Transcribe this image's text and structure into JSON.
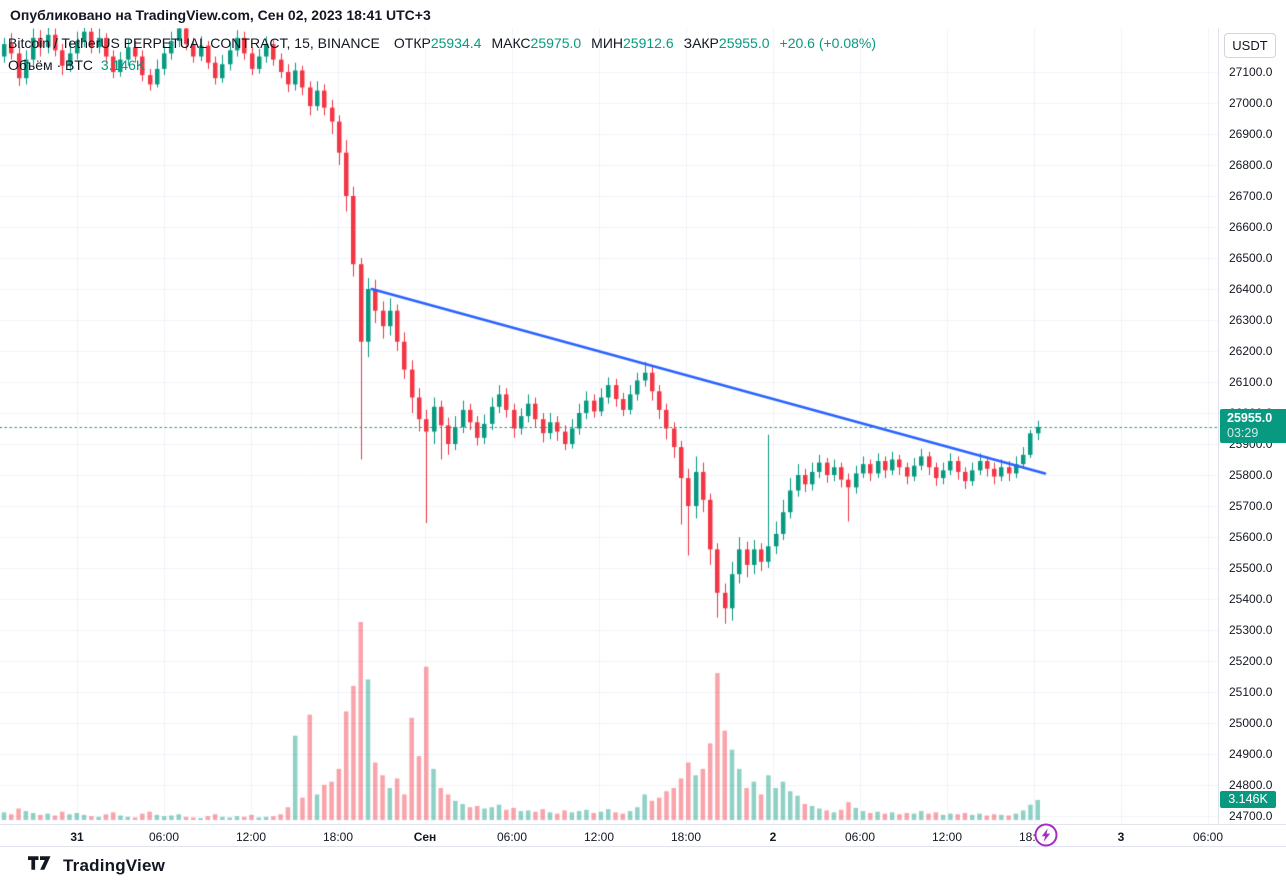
{
  "publish_bar": {
    "text": "Опубликовано на TradingView.com, Сен 02, 2023 18:41 UTC+3"
  },
  "legend": {
    "title": "Bitcoin / TetherUS PERPETUAL CONTRACT, 15, BINANCE",
    "fields": [
      {
        "label": "ОТКР",
        "value": "25934.4"
      },
      {
        "label": "МАКС",
        "value": "25975.0"
      },
      {
        "label": "МИН",
        "value": "25912.6"
      },
      {
        "label": "ЗАКР",
        "value": "25955.0"
      }
    ],
    "change": "+20.6 (+0.08%)",
    "volume_label": "Объём · BTC",
    "volume_value": "3.146K"
  },
  "price_axis": {
    "currency_button": "USDT",
    "ticks": [
      "27100.0",
      "27000.0",
      "26900.0",
      "26800.0",
      "26700.0",
      "26600.0",
      "26500.0",
      "26400.0",
      "26300.0",
      "26200.0",
      "26100.0",
      "26000.0",
      "25900.0",
      "25800.0",
      "25700.0",
      "25600.0",
      "25500.0",
      "25400.0",
      "25300.0",
      "25200.0",
      "25100.0",
      "25000.0",
      "24900.0",
      "24800.0",
      "24700.0"
    ],
    "last_price_badge": {
      "price": "25955.0",
      "countdown": "03:29"
    },
    "volume_badge": "3.146K"
  },
  "time_axis": {
    "labels": [
      {
        "text": "31",
        "major": true
      },
      {
        "text": "06:00",
        "major": false
      },
      {
        "text": "12:00",
        "major": false
      },
      {
        "text": "18:00",
        "major": false
      },
      {
        "text": "Сен",
        "major": true
      },
      {
        "text": "06:00",
        "major": false
      },
      {
        "text": "12:00",
        "major": false
      },
      {
        "text": "18:00",
        "major": false
      },
      {
        "text": "2",
        "major": true
      },
      {
        "text": "06:00",
        "major": false
      },
      {
        "text": "12:00",
        "major": false
      },
      {
        "text": "18:00",
        "major": false
      },
      {
        "text": "3",
        "major": true
      },
      {
        "text": "06:00",
        "major": false
      }
    ]
  },
  "footer": {
    "brand": "TradingView"
  },
  "icons": {
    "marker": "lightning-icon",
    "brand": "tradingview-logo-icon"
  },
  "colors": {
    "up": "#089981",
    "down": "#F23645",
    "volume_up": "rgba(8,153,129,0.45)",
    "volume_down": "rgba(242,54,69,0.45)",
    "trendline": "#2962FF",
    "grid": "#F0F3FA",
    "axis_text": "#131722",
    "badge_bg": "#089981",
    "marker_purple": "#A62BC3",
    "brand_dark": "#131722"
  },
  "chart_data": {
    "type": "candlestick",
    "pair": "Bitcoin / TetherUS PERPETUAL CONTRACT",
    "interval": "15",
    "exchange": "BINANCE",
    "open": 25934.4,
    "high": 25975.0,
    "low": 25912.6,
    "close": 25955.0,
    "change_abs": 20.6,
    "change_pct": 0.08,
    "last_price": 25955.0,
    "countdown": "03:29",
    "last_volume": 3.146,
    "volume_currency": "BTC",
    "price_axis_range": [
      24700,
      27240
    ],
    "price_grid_step": 100,
    "volume_scale_max": 31,
    "trendline": {
      "from": {
        "index": 50.5,
        "price": 26400
      },
      "to": {
        "index": 143,
        "price": 25805
      }
    },
    "candle_format": [
      "open",
      "high",
      "low",
      "close",
      "volume_kBTC"
    ],
    "candles": [
      [
        27150,
        27210,
        27130,
        27190,
        1.2
      ],
      [
        27190,
        27225,
        27140,
        27160,
        0.9
      ],
      [
        27160,
        27180,
        27055,
        27080,
        1.8
      ],
      [
        27080,
        27170,
        27060,
        27140,
        1.4
      ],
      [
        27140,
        27240,
        27120,
        27210,
        1.1
      ],
      [
        27210,
        27235,
        27150,
        27180,
        0.8
      ],
      [
        27180,
        27250,
        27160,
        27220,
        1.0
      ],
      [
        27220,
        27240,
        27150,
        27170,
        0.7
      ],
      [
        27170,
        27190,
        27090,
        27120,
        1.3
      ],
      [
        27120,
        27200,
        27100,
        27160,
        0.9
      ],
      [
        27160,
        27230,
        27140,
        27200,
        1.1
      ],
      [
        27200,
        27260,
        27180,
        27230,
        0.8
      ],
      [
        27230,
        27250,
        27160,
        27180,
        0.6
      ],
      [
        27180,
        27240,
        27160,
        27210,
        0.5
      ],
      [
        27210,
        27225,
        27130,
        27150,
        0.9
      ],
      [
        27150,
        27170,
        27080,
        27100,
        1.2
      ],
      [
        27100,
        27165,
        27085,
        27140,
        0.7
      ],
      [
        27140,
        27205,
        27120,
        27180,
        0.5
      ],
      [
        27180,
        27200,
        27130,
        27150,
        0.4
      ],
      [
        27150,
        27170,
        27070,
        27090,
        1.0
      ],
      [
        27090,
        27110,
        27040,
        27060,
        1.3
      ],
      [
        27060,
        27140,
        27050,
        27110,
        0.8
      ],
      [
        27110,
        27185,
        27090,
        27160,
        0.6
      ],
      [
        27160,
        27230,
        27140,
        27200,
        0.7
      ],
      [
        27200,
        27265,
        27180,
        27240,
        0.9
      ],
      [
        27240,
        27255,
        27170,
        27190,
        0.5
      ],
      [
        27190,
        27210,
        27130,
        27150,
        0.4
      ],
      [
        27150,
        27215,
        27135,
        27185,
        0.3
      ],
      [
        27185,
        27200,
        27110,
        27130,
        0.6
      ],
      [
        27130,
        27150,
        27060,
        27080,
        0.9
      ],
      [
        27080,
        27155,
        27065,
        27125,
        0.5
      ],
      [
        27125,
        27195,
        27105,
        27170,
        0.4
      ],
      [
        27170,
        27235,
        27150,
        27210,
        0.6
      ],
      [
        27210,
        27230,
        27140,
        27160,
        0.5
      ],
      [
        27160,
        27180,
        27090,
        27110,
        0.8
      ],
      [
        27110,
        27175,
        27095,
        27150,
        0.4
      ],
      [
        27150,
        27215,
        27130,
        27190,
        0.5
      ],
      [
        27190,
        27205,
        27120,
        27140,
        0.6
      ],
      [
        27140,
        27160,
        27080,
        27100,
        0.9
      ],
      [
        27100,
        27125,
        27035,
        27060,
        2.0
      ],
      [
        27060,
        27130,
        27040,
        27105,
        13.2
      ],
      [
        27105,
        27120,
        27025,
        27050,
        3.5
      ],
      [
        27050,
        27070,
        26960,
        26990,
        16.5
      ],
      [
        26990,
        27070,
        26975,
        27040,
        4.0
      ],
      [
        27040,
        27060,
        26960,
        26985,
        5.5
      ],
      [
        26985,
        27010,
        26900,
        26940,
        6.0
      ],
      [
        26940,
        26960,
        26800,
        26840,
        8.0
      ],
      [
        26840,
        26880,
        26650,
        26700,
        17.0
      ],
      [
        26700,
        26730,
        26440,
        26480,
        21.0
      ],
      [
        26480,
        26500,
        25850,
        26230,
        31.0
      ],
      [
        26230,
        26435,
        26180,
        26400,
        22.0
      ],
      [
        26400,
        26430,
        26290,
        26330,
        9.0
      ],
      [
        26330,
        26360,
        26240,
        26280,
        7.0
      ],
      [
        26280,
        26370,
        26250,
        26330,
        5.0
      ],
      [
        26330,
        26350,
        26200,
        26230,
        6.5
      ],
      [
        26230,
        26260,
        26110,
        26140,
        4.0
      ],
      [
        26140,
        26170,
        26000,
        26050,
        16.0
      ],
      [
        26050,
        26080,
        25940,
        25980,
        10.0
      ],
      [
        25980,
        26010,
        25645,
        25940,
        24.0
      ],
      [
        25940,
        26050,
        25900,
        26020,
        8.0
      ],
      [
        26020,
        26040,
        25850,
        25960,
        5.0
      ],
      [
        25960,
        25985,
        25865,
        25900,
        4.0
      ],
      [
        25900,
        25990,
        25880,
        25955,
        3.0
      ],
      [
        25955,
        26040,
        25935,
        26010,
        2.5
      ],
      [
        26010,
        26030,
        25945,
        25970,
        2.0
      ],
      [
        25970,
        25990,
        25895,
        25920,
        2.2
      ],
      [
        25920,
        25995,
        25900,
        25965,
        1.8
      ],
      [
        25965,
        26050,
        25945,
        26020,
        2.0
      ],
      [
        26020,
        26090,
        26000,
        26060,
        2.4
      ],
      [
        26060,
        26080,
        25985,
        26010,
        1.6
      ],
      [
        26010,
        26030,
        25920,
        25950,
        1.9
      ],
      [
        25950,
        26015,
        25930,
        25990,
        1.4
      ],
      [
        25990,
        26060,
        25970,
        26030,
        1.5
      ],
      [
        26030,
        26050,
        25955,
        25980,
        1.3
      ],
      [
        25980,
        26000,
        25905,
        25935,
        1.7
      ],
      [
        25935,
        26000,
        25915,
        25970,
        1.2
      ],
      [
        25970,
        25990,
        25910,
        25940,
        1.0
      ],
      [
        25940,
        25960,
        25880,
        25900,
        1.5
      ],
      [
        25900,
        25980,
        25885,
        25950,
        1.2
      ],
      [
        25950,
        26030,
        25930,
        26000,
        1.4
      ],
      [
        26000,
        26070,
        25980,
        26040,
        1.6
      ],
      [
        26040,
        26060,
        25985,
        26005,
        1.1
      ],
      [
        26005,
        26080,
        25990,
        26050,
        1.3
      ],
      [
        26050,
        26115,
        26030,
        26090,
        1.7
      ],
      [
        26090,
        26110,
        26020,
        26045,
        1.2
      ],
      [
        26045,
        26065,
        25990,
        26010,
        1.0
      ],
      [
        26010,
        26090,
        25995,
        26060,
        1.4
      ],
      [
        26060,
        26130,
        26040,
        26105,
        2.0
      ],
      [
        26105,
        26165,
        26085,
        26130,
        4.0
      ],
      [
        26130,
        26150,
        26040,
        26070,
        3.0
      ],
      [
        26070,
        26090,
        25980,
        26010,
        3.5
      ],
      [
        26010,
        26030,
        25915,
        25950,
        4.5
      ],
      [
        25950,
        25970,
        25855,
        25890,
        5.0
      ],
      [
        25890,
        25910,
        25640,
        25790,
        6.5
      ],
      [
        25790,
        25820,
        25540,
        25700,
        9.0
      ],
      [
        25700,
        25860,
        25660,
        25810,
        7.0
      ],
      [
        25810,
        25840,
        25680,
        25720,
        8.0
      ],
      [
        25720,
        25740,
        25510,
        25560,
        12.0
      ],
      [
        25560,
        25580,
        25340,
        25420,
        23.0
      ],
      [
        25420,
        25450,
        25320,
        25370,
        14.0
      ],
      [
        25370,
        25520,
        25330,
        25480,
        11.0
      ],
      [
        25480,
        25600,
        25450,
        25560,
        8.0
      ],
      [
        25560,
        25585,
        25470,
        25510,
        5.0
      ],
      [
        25510,
        25590,
        25480,
        25560,
        6.0
      ],
      [
        25560,
        25580,
        25490,
        25520,
        4.0
      ],
      [
        25520,
        25930,
        25500,
        25570,
        7.0
      ],
      [
        25570,
        25650,
        25545,
        25610,
        5.0
      ],
      [
        25610,
        25720,
        25590,
        25680,
        6.0
      ],
      [
        25680,
        25790,
        25660,
        25750,
        4.5
      ],
      [
        25750,
        25835,
        25730,
        25800,
        3.8
      ],
      [
        25800,
        25820,
        25745,
        25770,
        2.5
      ],
      [
        25770,
        25840,
        25750,
        25810,
        2.2
      ],
      [
        25810,
        25865,
        25790,
        25840,
        1.8
      ],
      [
        25840,
        25855,
        25775,
        25800,
        1.5
      ],
      [
        25800,
        25850,
        25780,
        25825,
        1.2
      ],
      [
        25825,
        25840,
        25760,
        25785,
        1.6
      ],
      [
        25785,
        25805,
        25650,
        25760,
        2.8
      ],
      [
        25760,
        25830,
        25740,
        25805,
        1.9
      ],
      [
        25805,
        25860,
        25790,
        25835,
        1.4
      ],
      [
        25835,
        25850,
        25780,
        25805,
        1.1
      ],
      [
        25805,
        25870,
        25790,
        25845,
        1.3
      ],
      [
        25845,
        25860,
        25790,
        25815,
        1.0
      ],
      [
        25815,
        25875,
        25800,
        25850,
        1.2
      ],
      [
        25850,
        25865,
        25800,
        25825,
        0.9
      ],
      [
        25825,
        25840,
        25770,
        25795,
        1.1
      ],
      [
        25795,
        25855,
        25780,
        25830,
        1.0
      ],
      [
        25830,
        25885,
        25815,
        25860,
        1.4
      ],
      [
        25860,
        25875,
        25800,
        25825,
        1.0
      ],
      [
        25825,
        25840,
        25765,
        25790,
        1.2
      ],
      [
        25790,
        25840,
        25770,
        25815,
        0.8
      ],
      [
        25815,
        25870,
        25800,
        25845,
        1.0
      ],
      [
        25845,
        25860,
        25785,
        25810,
        0.9
      ],
      [
        25810,
        25825,
        25755,
        25780,
        1.1
      ],
      [
        25780,
        25840,
        25765,
        25815,
        0.8
      ],
      [
        25815,
        25870,
        25800,
        25845,
        1.0
      ],
      [
        25845,
        25860,
        25795,
        25820,
        0.7
      ],
      [
        25820,
        25840,
        25770,
        25795,
        0.9
      ],
      [
        25795,
        25850,
        25780,
        25825,
        0.8
      ],
      [
        25825,
        25845,
        25780,
        25805,
        0.7
      ],
      [
        25805,
        25860,
        25790,
        25835,
        1.0
      ],
      [
        25835,
        25890,
        25820,
        25865,
        1.5
      ],
      [
        25865,
        25945,
        25855,
        25934.4,
        2.4
      ],
      [
        25934.4,
        25975,
        25912.6,
        25955,
        3.146
      ]
    ]
  }
}
